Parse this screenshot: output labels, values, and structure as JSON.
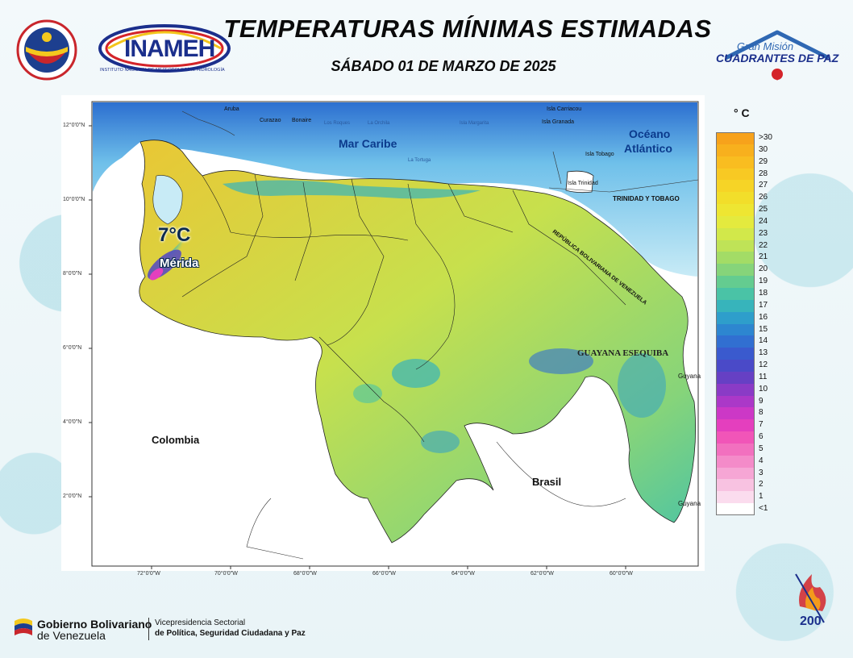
{
  "header": {
    "title": "TEMPERATURAS MÍNIMAS ESTIMADAS",
    "subtitle": "SÁBADO 01 DE MARZO DE 2025"
  },
  "logos": {
    "inameh": "INAMEH",
    "inameh_caption": "INSTITUTO NACIONAL DE METEOROLOGÍA E HIDROLOGÍA",
    "gran_mision_1": "Gran Misión",
    "gran_mision_2": "CUADRANTES DE PAZ"
  },
  "map": {
    "annotation_temp": "7°C",
    "annotation_city": "Mérida",
    "labels": {
      "mar_caribe": "Mar Caribe",
      "oceano_1": "Océano",
      "oceano_2": "Atlántico",
      "colombia": "Colombia",
      "brasil": "Brasil",
      "guyana_esequiba": "GUAYANA ESEQUIBA",
      "guyana": "Guyana",
      "guyana_bottom": "Guyana",
      "trinidad": "TRINIDAD Y TOBAGO",
      "rep_boliv": "REPÚBLICA BOLIVARIANA DE VENEZUELA",
      "aruba": "Aruba",
      "curazao": "Curazao",
      "bonaire": "Bonaire",
      "isla_carriacou": "Isla Carriacou",
      "isla_granada": "Isla Granada",
      "isla_tobago": "Isla Tobago",
      "isla_trinidad": "Isla Trinidad",
      "la_tortuga": "La Tortuga",
      "los_roques": "Los Roques",
      "la_orchila": "La Orchila",
      "margarita": "Isla Margarita"
    },
    "lat_ticks": [
      "12°0'0\"N",
      "10°0'0\"N",
      "8°0'0\"N",
      "6°0'0\"N",
      "4°0'0\"N",
      "2°0'0\"N"
    ],
    "lon_ticks": [
      "72°0'0\"W",
      "70°0'0\"W",
      "68°0'0\"W",
      "66°0'0\"W",
      "64°0'0\"W",
      "62°0'0\"W",
      "60°0'0\"W"
    ]
  },
  "legend": {
    "title": "° C",
    "items": [
      {
        "label": ">30",
        "color": "#f7a21b"
      },
      {
        "label": "30",
        "color": "#f8b01d"
      },
      {
        "label": "29",
        "color": "#f9bd20"
      },
      {
        "label": "28",
        "color": "#f8c923"
      },
      {
        "label": "27",
        "color": "#f6d426"
      },
      {
        "label": "26",
        "color": "#f2de2a"
      },
      {
        "label": "25",
        "color": "#eee632"
      },
      {
        "label": "24",
        "color": "#e4ea3e"
      },
      {
        "label": "23",
        "color": "#d2e84a"
      },
      {
        "label": "22",
        "color": "#bfe357"
      },
      {
        "label": "21",
        "color": "#a3dc66"
      },
      {
        "label": "20",
        "color": "#86d47a"
      },
      {
        "label": "19",
        "color": "#64cc90"
      },
      {
        "label": "18",
        "color": "#4ac3a6"
      },
      {
        "label": "17",
        "color": "#37b4bb"
      },
      {
        "label": "16",
        "color": "#2e9ecb"
      },
      {
        "label": "15",
        "color": "#2d86d0"
      },
      {
        "label": "14",
        "color": "#316fd1"
      },
      {
        "label": "13",
        "color": "#3a5ace"
      },
      {
        "label": "12",
        "color": "#4a4ac8"
      },
      {
        "label": "11",
        "color": "#6640c4"
      },
      {
        "label": "10",
        "color": "#8a3bc6"
      },
      {
        "label": "9",
        "color": "#ab38c8"
      },
      {
        "label": "8",
        "color": "#cc38c6"
      },
      {
        "label": "7",
        "color": "#e43fbe"
      },
      {
        "label": "6",
        "color": "#f155b8"
      },
      {
        "label": "5",
        "color": "#f270bf"
      },
      {
        "label": "4",
        "color": "#f48bc9"
      },
      {
        "label": "3",
        "color": "#f6a6d5"
      },
      {
        "label": "2",
        "color": "#f8c2e1"
      },
      {
        "label": "1",
        "color": "#fbdcee"
      },
      {
        "label": "<1",
        "color": "#ffffff"
      }
    ]
  },
  "footer": {
    "gob_1": "Gobierno Bolivariano",
    "gob_2": "de Venezuela",
    "vice_1": "Vicepresidencia Sectorial",
    "vice_2": "de Política, Seguridad Ciudadana y Paz",
    "bicentenario": "200"
  },
  "colors": {
    "sea_deep": "#2c6fd0",
    "sea_light": "#9fd7ef",
    "land_warm": "#eec531",
    "land_mid": "#b8dc5a",
    "land_cool": "#3fb3b8"
  }
}
